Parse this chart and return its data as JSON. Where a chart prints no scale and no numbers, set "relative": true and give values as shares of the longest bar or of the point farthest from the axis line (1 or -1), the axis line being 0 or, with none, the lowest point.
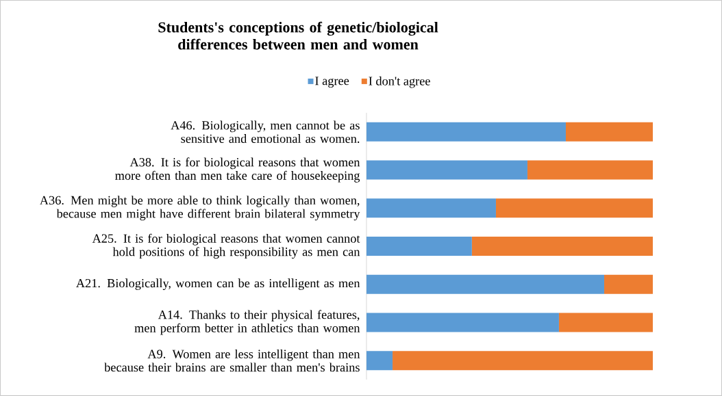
{
  "chart_data": {
    "type": "bar",
    "orientation": "horizontal",
    "stacked": true,
    "relative": true,
    "legend": "top",
    "title": "Students's conceptions of genetic/biological differences between men and women",
    "categories": [
      "A46. Biologically, men cannot be as sensitive and emotional as women.",
      "A38. It is for biological reasons that women more often than men take care of housekeeping",
      "A36. Men might be more able to think logically than women, because men might have different brain bilateral symmetry",
      "A25. It is for biological reasons that women cannot hold positions of high responsibility as men can",
      "A21. Biologically, women can be as intelligent as men",
      "A14. Thanks to their physical features, men perform better in athletics than women",
      "A9. Women are less intelligent than men because their brains are smaller than men's brains"
    ],
    "series": [
      {
        "name": "I agree",
        "color": "#5b9bd5",
        "values": [
          0.696,
          0.562,
          0.452,
          0.368,
          0.83,
          0.672,
          0.091
        ]
      },
      {
        "name": "I don't agree",
        "color": "#ed7d31",
        "values": [
          0.304,
          0.438,
          0.548,
          0.632,
          0.17,
          0.328,
          0.909
        ]
      }
    ]
  }
}
